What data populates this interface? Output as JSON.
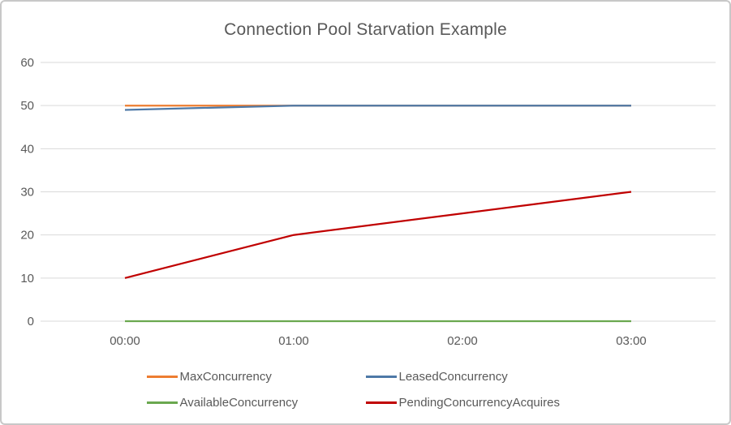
{
  "window": {
    "background": "#ffffff",
    "border_color": "#c8c8c8"
  },
  "chart_data": {
    "type": "line",
    "title": "Connection Pool Starvation Example",
    "categories": [
      "00:00",
      "01:00",
      "02:00",
      "03:00"
    ],
    "series": [
      {
        "name": "MaxConcurrency",
        "color": "#ED7D31",
        "values": [
          50,
          50,
          50,
          50
        ]
      },
      {
        "name": "LeasedConcurrency",
        "color": "#4E79A7",
        "values": [
          49,
          50,
          50,
          50
        ]
      },
      {
        "name": "AvailableConcurrency",
        "color": "#6AA84F",
        "values": [
          0,
          0,
          0,
          0
        ]
      },
      {
        "name": "PendingConcurrencyAcquires",
        "color": "#C00000",
        "values": [
          10,
          20,
          25,
          30
        ]
      }
    ],
    "xlabel": "",
    "ylabel": "",
    "ylim": [
      0,
      60
    ],
    "yticks": [
      0,
      10,
      20,
      30,
      40,
      50,
      60
    ],
    "grid": true,
    "legend_position": "bottom",
    "styles": {
      "text_color": "#595959",
      "grid_color": "#D9D9D9",
      "tick_font_size": 15,
      "line_width": 2.25
    }
  }
}
